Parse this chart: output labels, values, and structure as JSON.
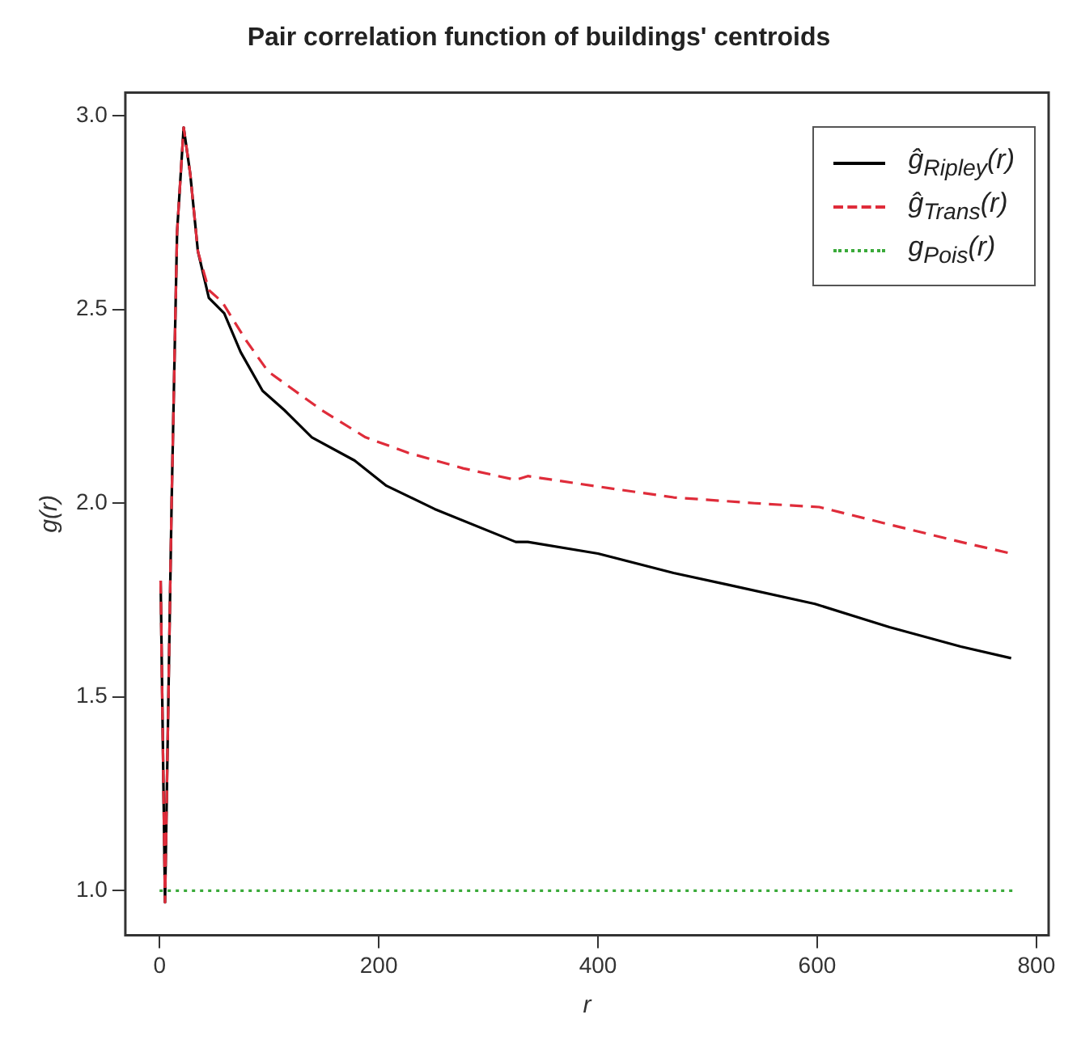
{
  "chart_data": {
    "type": "line",
    "title": "Pair correlation function of buildings' centroids",
    "xlabel": "r",
    "ylabel": "g(r)",
    "xlim": [
      -31.2,
      811.2
    ],
    "xticks": [
      0,
      200,
      400,
      600,
      800
    ],
    "ylim": [
      0.885,
      3.06
    ],
    "yticks": [
      {
        "value": 1,
        "label": "1.0"
      },
      1.5,
      {
        "value": 2,
        "label": "2.0"
      },
      2.5,
      {
        "value": 3,
        "label": "3.0"
      }
    ],
    "grid": false,
    "legend": "top right",
    "marker": "none",
    "series": [
      {
        "name": "ĝ$_{Ripley}$(r)",
        "color": "#000000",
        "line_style": "solid",
        "x": [
          1,
          5,
          11,
          16,
          22,
          28,
          35,
          45,
          59,
          74,
          94,
          114,
          139,
          178,
          207,
          251,
          325,
          336,
          400,
          469,
          518,
          598,
          666,
          731,
          777
        ],
        "values": [
          1.8,
          0.97,
          2.0,
          2.7,
          2.97,
          2.85,
          2.65,
          2.53,
          2.49,
          2.39,
          2.29,
          2.24,
          2.17,
          2.11,
          2.045,
          1.985,
          1.9,
          1.9,
          1.87,
          1.82,
          1.79,
          1.74,
          1.68,
          1.63,
          1.6
        ]
      },
      {
        "name": "ĝ$_{Trans}$(r)",
        "color": "#df2c3a",
        "line_style": "dashed",
        "x": [
          1,
          5,
          11,
          16,
          22,
          28,
          35,
          45,
          57,
          79,
          99,
          148,
          188,
          227,
          277,
          325,
          336,
          395,
          469,
          543,
          602,
          666,
          731,
          777
        ],
        "values": [
          1.8,
          0.97,
          2.0,
          2.7,
          2.97,
          2.85,
          2.65,
          2.55,
          2.52,
          2.42,
          2.34,
          2.24,
          2.17,
          2.13,
          2.09,
          2.06,
          2.07,
          2.045,
          2.015,
          2.0,
          1.99,
          1.945,
          1.9,
          1.87
        ]
      },
      {
        "name": "g$_{Pois}$(r)",
        "color": "#3aaa3a",
        "line_style": "dotted",
        "x": [
          0,
          780
        ],
        "values": [
          1,
          1
        ]
      }
    ]
  }
}
